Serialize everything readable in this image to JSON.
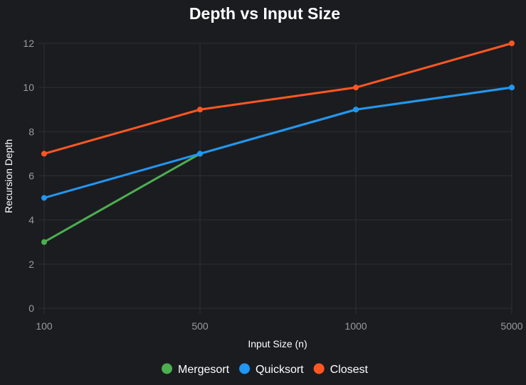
{
  "chart_data": {
    "type": "line",
    "title": "Depth vs Input Size",
    "xlabel": "Input Size (n)",
    "ylabel": "Recursion Depth",
    "categories": [
      "100",
      "500",
      "1000",
      "5000"
    ],
    "ylim": [
      0,
      12
    ],
    "yticks": [
      "0",
      "2",
      "4",
      "6",
      "8",
      "10",
      "12"
    ],
    "grid": true,
    "legend_position": "bottom",
    "series": [
      {
        "name": "Mergesort",
        "values": [
          3,
          7,
          9,
          10
        ],
        "color": "#4caf50"
      },
      {
        "name": "Quicksort",
        "values": [
          5,
          7,
          9,
          10
        ],
        "color": "#2196f3"
      },
      {
        "name": "Closest",
        "values": [
          7,
          9,
          10,
          12
        ],
        "color": "#ff5722"
      }
    ]
  }
}
